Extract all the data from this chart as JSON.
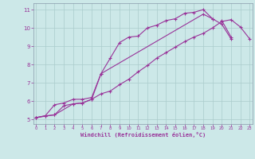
{
  "title": "",
  "xlabel": "Windchill (Refroidissement éolien,°C)",
  "ylabel": "",
  "bg_color": "#cce8e8",
  "line_color": "#993399",
  "grid_color": "#aacccc",
  "line1_x": [
    0,
    1,
    2,
    3,
    4,
    5,
    6,
    7,
    8,
    9,
    10,
    11,
    12,
    13,
    14,
    15,
    16,
    17,
    18,
    19,
    20,
    21
  ],
  "line1_y": [
    5.1,
    5.2,
    5.8,
    5.9,
    6.1,
    6.1,
    6.2,
    7.5,
    8.35,
    9.2,
    9.5,
    9.55,
    10.0,
    10.15,
    10.4,
    10.5,
    10.8,
    10.85,
    11.0,
    10.5,
    10.2,
    9.4
  ],
  "line2_x": [
    0,
    1,
    2,
    3,
    4,
    5,
    6,
    7,
    8,
    9,
    10,
    11,
    12,
    13,
    14,
    15,
    16,
    17,
    18,
    19,
    20,
    21,
    22,
    23
  ],
  "line2_y": [
    5.1,
    5.2,
    5.25,
    5.75,
    5.85,
    5.9,
    6.1,
    6.4,
    6.55,
    6.9,
    7.2,
    7.6,
    7.95,
    8.35,
    8.65,
    8.95,
    9.25,
    9.5,
    9.7,
    10.0,
    10.35,
    10.45,
    10.05,
    9.4
  ],
  "line3_x": [
    0,
    2,
    4,
    5,
    6,
    7,
    18,
    19,
    20,
    21
  ],
  "line3_y": [
    5.1,
    5.25,
    5.85,
    5.9,
    6.1,
    7.5,
    10.75,
    10.5,
    10.4,
    9.5
  ],
  "xlim": [
    -0.3,
    23.3
  ],
  "ylim": [
    4.75,
    11.35
  ],
  "yticks": [
    5,
    6,
    7,
    8,
    9,
    10,
    11
  ],
  "xticks": [
    0,
    1,
    2,
    3,
    4,
    5,
    6,
    7,
    8,
    9,
    10,
    11,
    12,
    13,
    14,
    15,
    16,
    17,
    18,
    19,
    20,
    21,
    22,
    23
  ]
}
